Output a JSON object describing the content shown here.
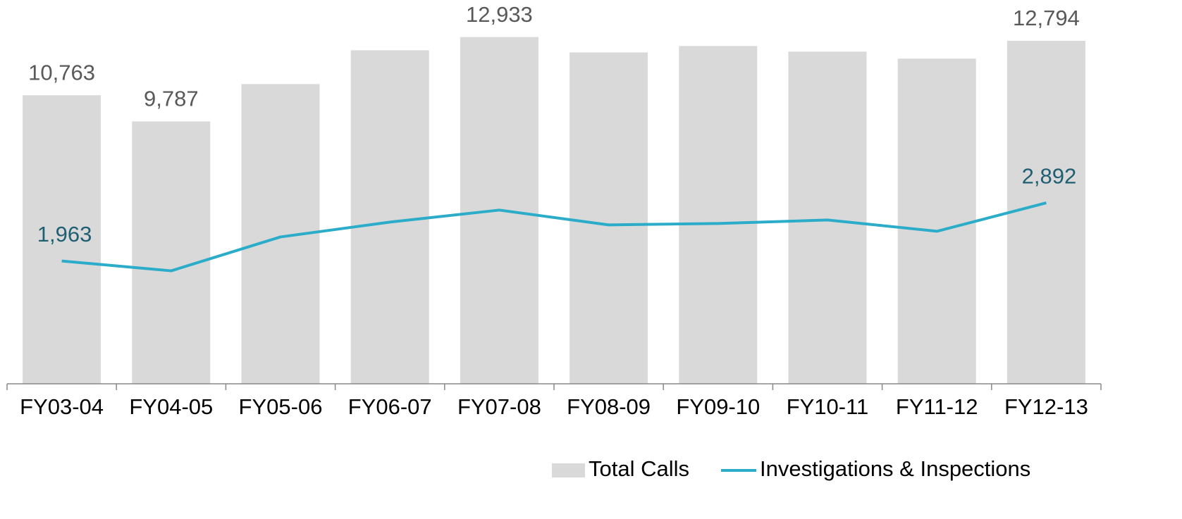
{
  "chart_data": {
    "type": "bar-line",
    "categories": [
      "FY03-04",
      "FY04-05",
      "FY05-06",
      "FY06-07",
      "FY07-08",
      "FY08-09",
      "FY09-10",
      "FY10-11",
      "FY11-12",
      "FY12-13"
    ],
    "series": [
      {
        "name": "Total Calls",
        "type": "bar",
        "color": "#d9d9d9",
        "values": [
          10763,
          9787,
          11180,
          12440,
          12933,
          12360,
          12600,
          12390,
          12130,
          12794
        ],
        "value_labels": [
          "10,763",
          "9,787",
          null,
          null,
          "12,933",
          null,
          null,
          null,
          null,
          "12,794"
        ]
      },
      {
        "name": "Investigations & Inspections",
        "type": "line",
        "axis": "y2",
        "color": "#2bacc9",
        "values": [
          1963,
          1806,
          2348,
          2585,
          2777,
          2540,
          2562,
          2619,
          2438,
          2892
        ],
        "value_labels": [
          "1,963",
          null,
          null,
          null,
          null,
          null,
          null,
          null,
          null,
          "2,892"
        ]
      }
    ],
    "ylim": [
      0,
      14000
    ],
    "y2lim": [
      0,
      6000
    ],
    "legend": "bottom-right"
  }
}
